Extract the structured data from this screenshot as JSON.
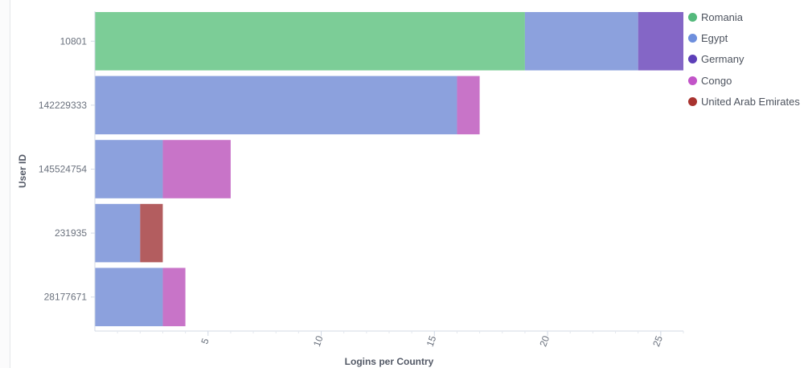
{
  "chart_data": {
    "type": "bar",
    "orientation": "horizontal",
    "stacked": true,
    "categories": [
      "10801",
      "142229333",
      "145524754",
      "231935",
      "28177671"
    ],
    "series": [
      {
        "name": "Romania",
        "color": "#7ccd97",
        "values": [
          19,
          0,
          0,
          0,
          0
        ]
      },
      {
        "name": "Egypt",
        "color": "#8ca1dd",
        "values": [
          5,
          16,
          3,
          2,
          3
        ]
      },
      {
        "name": "Germany",
        "color": "#8466c6",
        "values": [
          2,
          0,
          0,
          0,
          0
        ]
      },
      {
        "name": "Congo",
        "color": "#c874c8",
        "values": [
          0,
          1,
          3,
          0,
          1
        ]
      },
      {
        "name": "United Arab Emirates",
        "color": "#b35d5f",
        "values": [
          0,
          0,
          0,
          1,
          0
        ]
      }
    ],
    "legend_swatch_colors": [
      "#54b97c",
      "#6e8fdd",
      "#5d3fb8",
      "#c254c8",
      "#a8332f"
    ],
    "xlabel": "Logins per Country",
    "ylabel": "User ID",
    "xlim": [
      0,
      26
    ],
    "xticks": [
      5,
      10,
      15,
      20,
      25
    ],
    "grid": false,
    "legend_position": "right"
  }
}
